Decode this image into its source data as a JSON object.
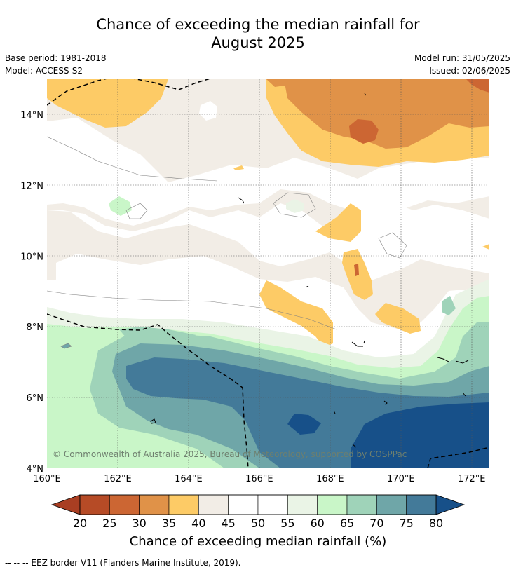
{
  "header": {
    "title_line1": "Chance of exceeding the median rainfall for",
    "title_line2": "August 2025",
    "base_period": "Base period: 1981-2018",
    "model": "Model: ACCESS-S2",
    "model_run": "Model run: 31/05/2025",
    "issued": "Issued: 02/06/2025"
  },
  "copyright": "© Commonwealth of Australia 2025, Bureau of Meteorology, supported by COSPPac",
  "footnote": "--  --  -- EEZ border V11 (Flanders Marine Institute, 2019).",
  "colors": {
    "c15_20": "#a93e22",
    "c20_25": "#b64b26",
    "c25_30": "#cc6633",
    "c30_35": "#e09248",
    "c35_40": "#fdcb66",
    "c40_45": "#f2ede6",
    "c45_55": "#ffffff",
    "c55_60": "#eaf4e6",
    "c60_65": "#c9f6c8",
    "c65_70": "#9fd3b9",
    "c70_75": "#6fa6a8",
    "c75_80": "#437a99",
    "c80_85": "#175089"
  },
  "chart_data": {
    "type": "heatmap",
    "title": "Chance of exceeding the median rainfall for August 2025",
    "x_axis": {
      "ticks": [
        "160°E",
        "162°E",
        "164°E",
        "166°E",
        "168°E",
        "170°E",
        "172°E"
      ],
      "range": [
        160,
        172.5
      ]
    },
    "y_axis": {
      "ticks": [
        "4°N",
        "6°N",
        "8°N",
        "10°N",
        "12°N",
        "14°N"
      ],
      "range": [
        4,
        15
      ]
    },
    "grid": true,
    "colorbar": {
      "label": "Chance of exceeding median rainfall (%)",
      "ticks": [
        "20",
        "25",
        "30",
        "35",
        "40",
        "45",
        "50",
        "55",
        "60",
        "65",
        "70",
        "75",
        "80"
      ],
      "extend": "both"
    },
    "regions": [
      {
        "description": "drier than median, north-east",
        "level_range": [
          25,
          35
        ],
        "lon_range": [
          167.5,
          172.5
        ],
        "lat_range": [
          13.2,
          15
        ]
      },
      {
        "description": "wetter than median, south",
        "level_range": [
          70,
          85
        ],
        "lon_range": [
          162,
          172.5
        ],
        "lat_range": [
          4,
          7
        ]
      },
      {
        "description": "neutral",
        "level_range": [
          40,
          60
        ],
        "lon_range": [
          160,
          172.5
        ],
        "lat_range": [
          8,
          13
        ]
      }
    ]
  }
}
